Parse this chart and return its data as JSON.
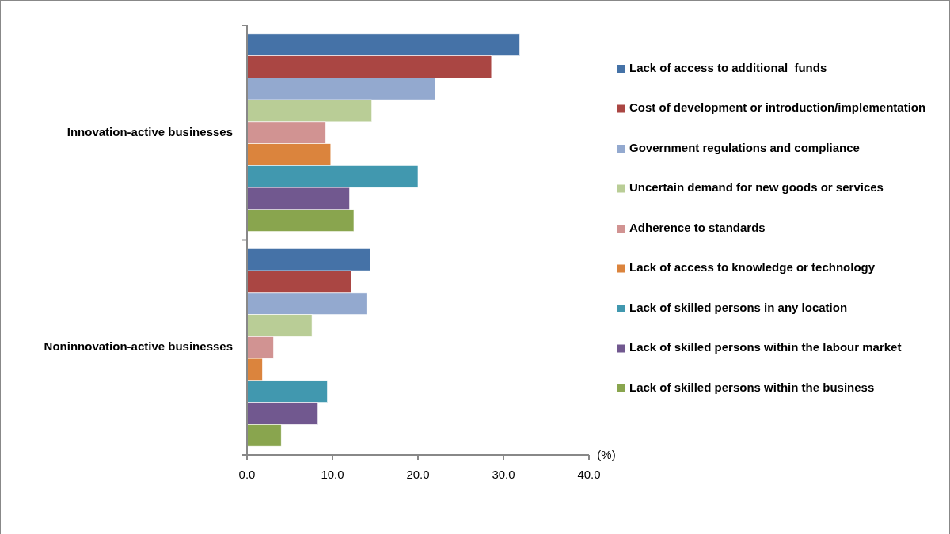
{
  "chart_data": {
    "type": "bar",
    "orientation": "horizontal",
    "xlabel": "(%)",
    "categories": [
      "Innovation-active businesses",
      "Noninnovation-active businesses"
    ],
    "xlim": [
      0,
      40
    ],
    "xticks": [
      {
        "value": 0,
        "label": "0.0"
      },
      {
        "value": 10,
        "label": "10.0"
      },
      {
        "value": 20,
        "label": "20.0"
      },
      {
        "value": 30,
        "label": "30.0"
      },
      {
        "value": 40,
        "label": "40.0"
      }
    ],
    "legend": "right",
    "grid": false,
    "series": [
      {
        "name": "Lack of access to additional  funds",
        "color": "#4572a7",
        "values": [
          31.9,
          14.4
        ]
      },
      {
        "name": "Cost of development or introduction/implementation",
        "color": "#aa4643",
        "values": [
          28.6,
          12.2
        ]
      },
      {
        "name": "Government regulations and compliance",
        "color": "#93a9cf",
        "values": [
          22.0,
          14.0
        ]
      },
      {
        "name": "Uncertain demand for new goods or services",
        "color": "#b9cd96",
        "values": [
          14.6,
          7.6
        ]
      },
      {
        "name": "Adherence to standards",
        "color": "#d19392",
        "values": [
          9.2,
          3.1
        ]
      },
      {
        "name": "Lack of access to knowledge or technology",
        "color": "#db843d",
        "values": [
          9.8,
          1.8
        ]
      },
      {
        "name": "Lack of skilled persons in any location",
        "color": "#4198af",
        "values": [
          20.0,
          9.4
        ]
      },
      {
        "name": "Lack of skilled persons within the labour market",
        "color": "#71588f",
        "values": [
          12.0,
          8.3
        ]
      },
      {
        "name": "Lack of skilled persons within the business",
        "color": "#89a54e",
        "values": [
          12.5,
          4.0
        ]
      }
    ]
  }
}
